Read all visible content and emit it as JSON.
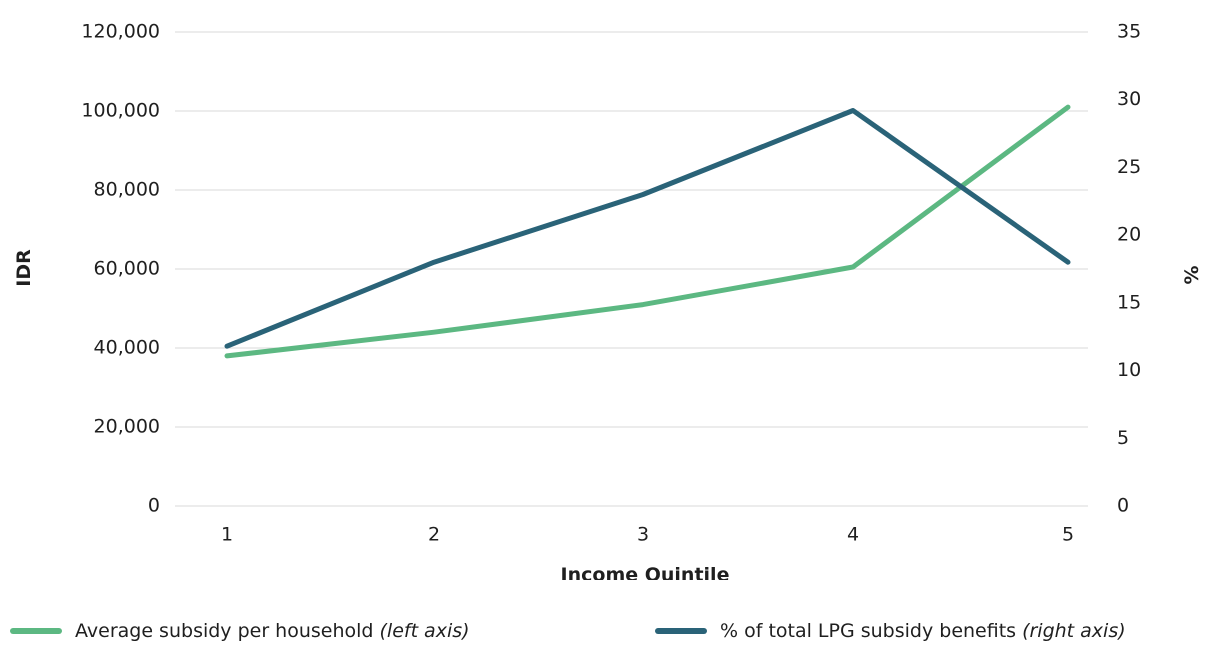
{
  "chart_data": {
    "type": "line",
    "categories": [
      "1",
      "2",
      "3",
      "4",
      "5"
    ],
    "xlabel": "Income Quintile",
    "ylabel_left": "IDR",
    "ylabel_right": "%",
    "y_left_range": [
      0,
      120000
    ],
    "y_left_ticks": [
      "0",
      "20,000",
      "40,000",
      "60,000",
      "80,000",
      "100,000",
      "120,000"
    ],
    "y_right_range": [
      0,
      35
    ],
    "y_right_ticks": [
      "0",
      "5",
      "10",
      "15",
      "20",
      "25",
      "30",
      "35"
    ],
    "grid": true,
    "legend_position": "bottom",
    "series": [
      {
        "name": "Average subsidy per household",
        "axis_note": "(left axis)",
        "axis": "left",
        "color": "#5cb882",
        "values": [
          38000,
          44000,
          51000,
          60500,
          101000
        ]
      },
      {
        "name": "% of total LPG subsidy benefits",
        "axis_note": "(right axis)",
        "axis": "right",
        "color": "#2a6378",
        "values": [
          11.8,
          18,
          23,
          29.2,
          18
        ]
      }
    ]
  }
}
